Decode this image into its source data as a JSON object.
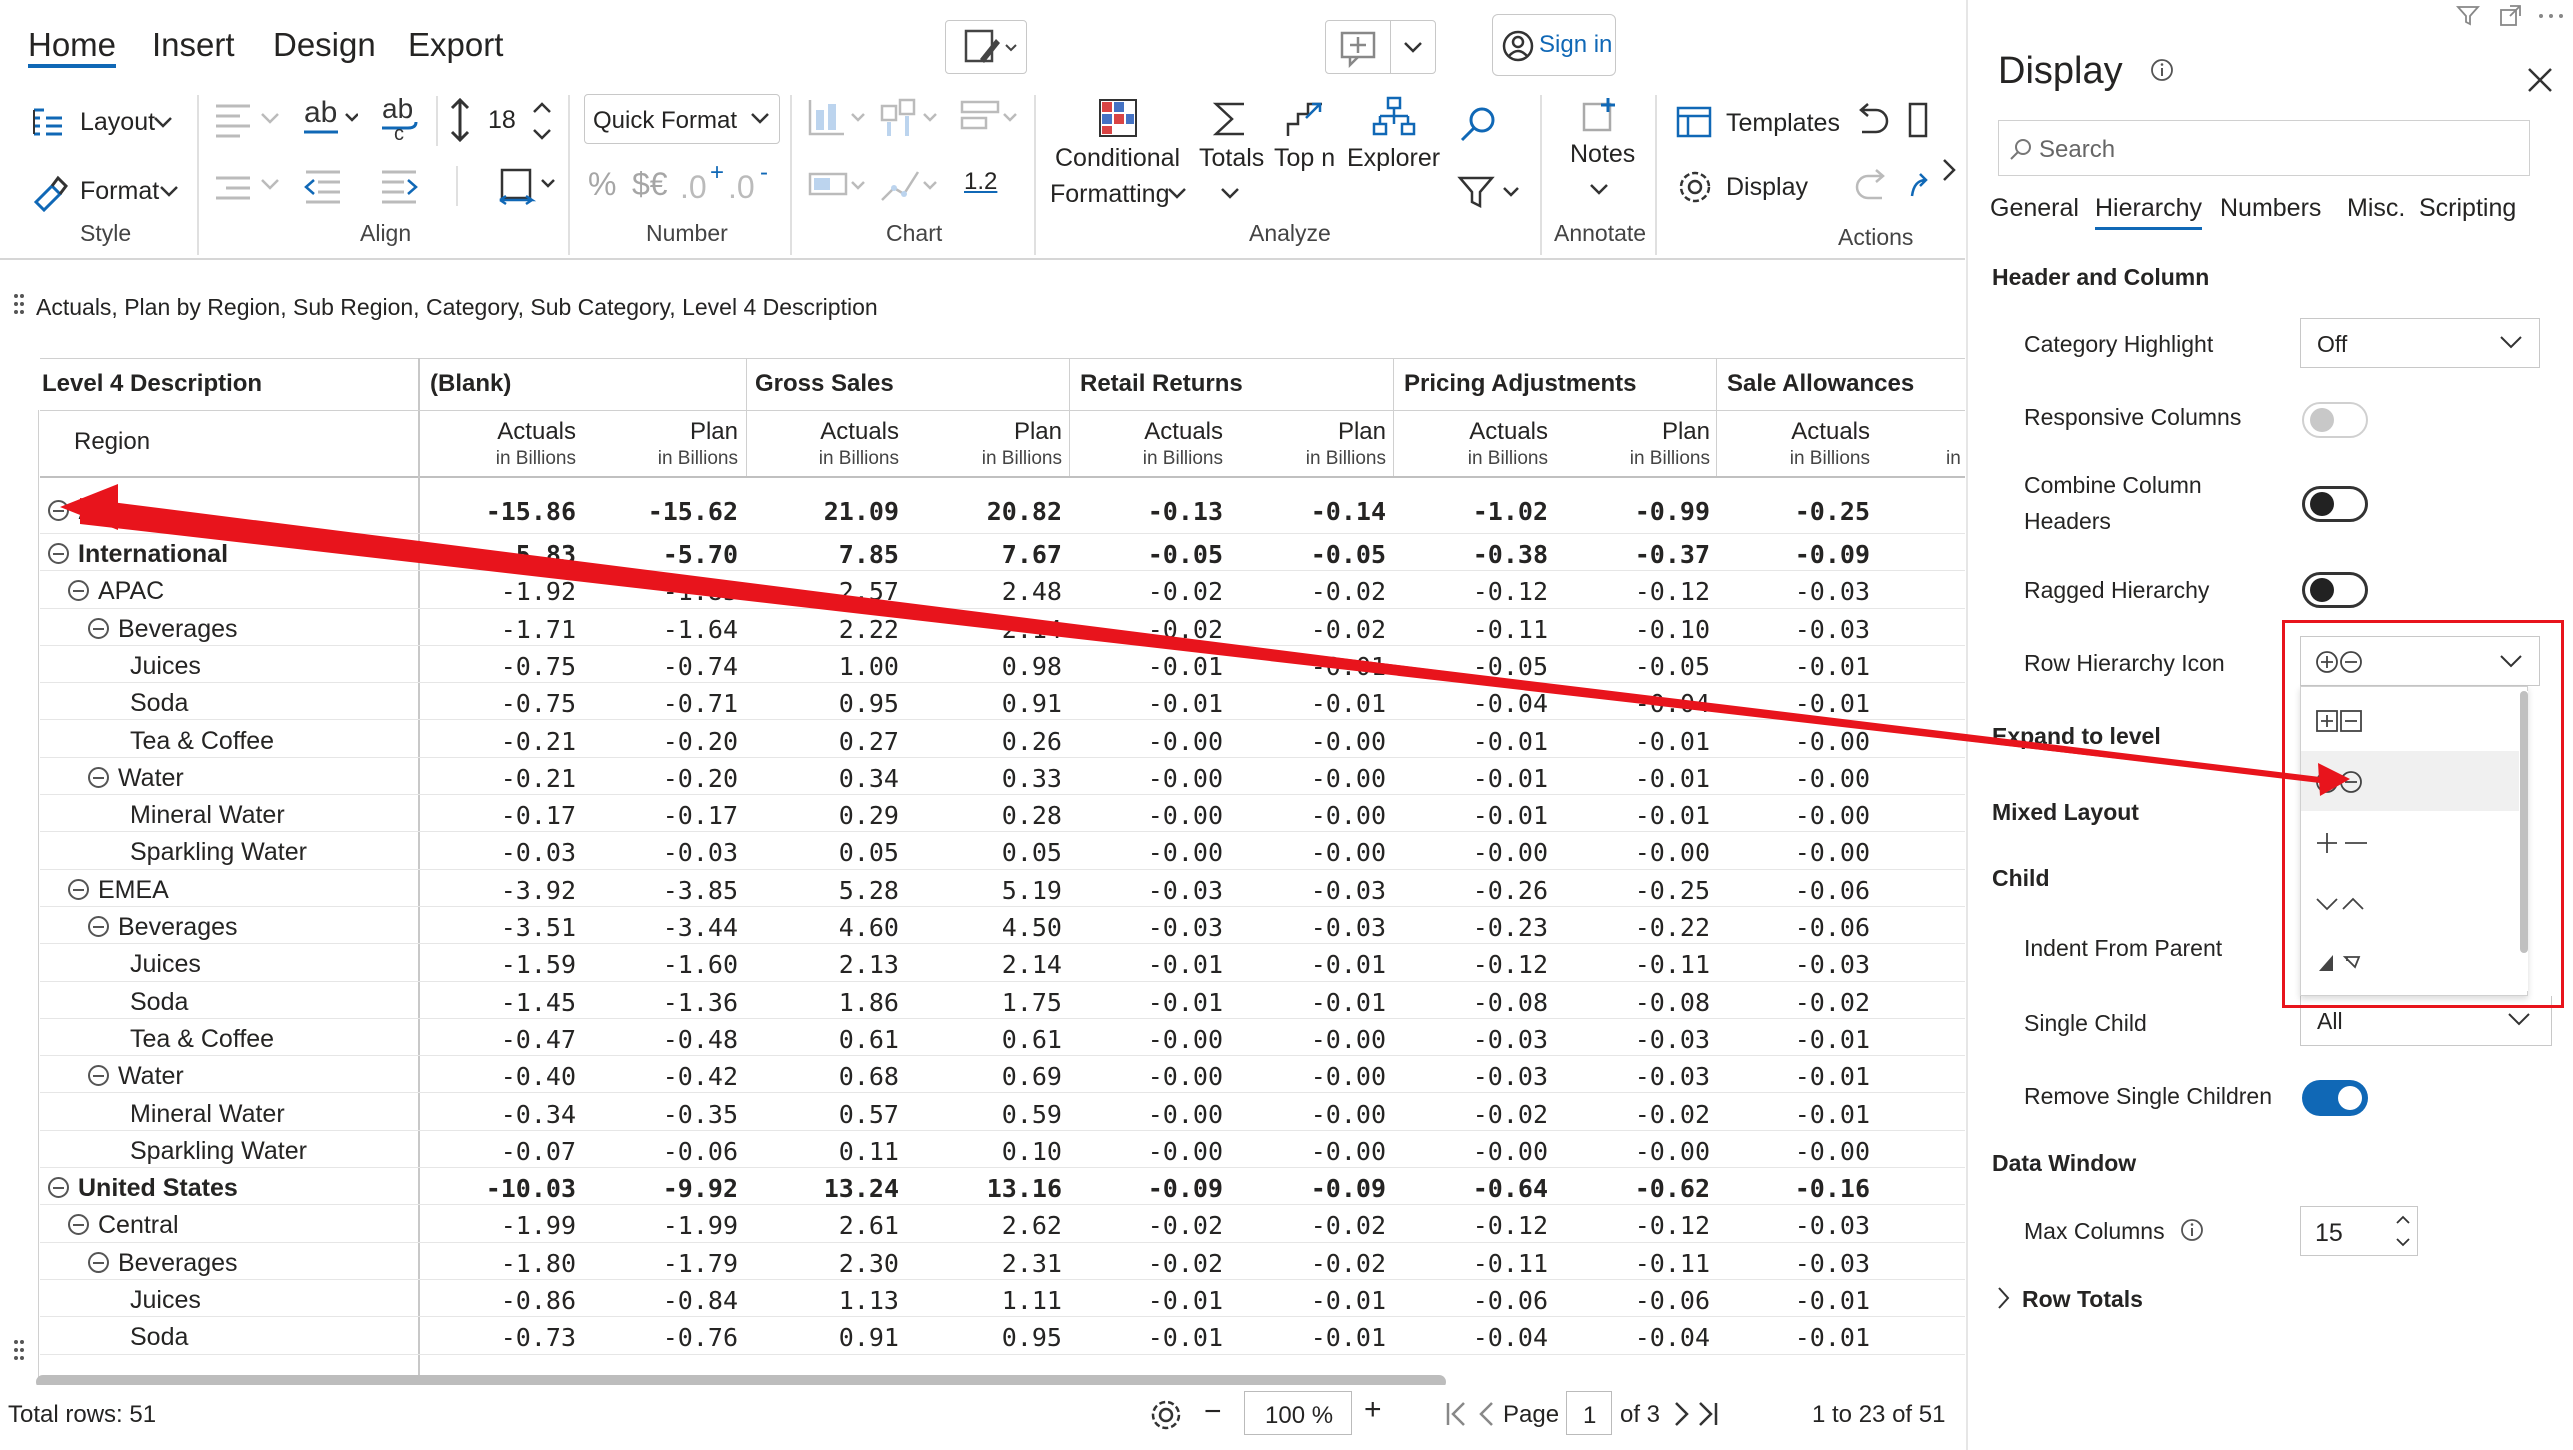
{
  "ribbon": {
    "tabs": [
      "Home",
      "Insert",
      "Design",
      "Export"
    ],
    "sign_in": "Sign in",
    "layout": "Layout",
    "format": "Format",
    "style_group": "Style",
    "font_size": "18",
    "align_group": "Align",
    "quick_format": "Quick Format",
    "number_group": "Number",
    "decimal": "1.2",
    "chart_group": "Chart",
    "conditional": "Conditional",
    "formatting": "Formatting",
    "totals": "Totals",
    "top_n": "Top n",
    "explorer": "Explorer",
    "analyze_group": "Analyze",
    "notes": "Notes",
    "annotate_group": "Annotate",
    "templates": "Templates",
    "display": "Display",
    "actions_group": "Actions"
  },
  "breadcrumb": "Actuals, Plan by Region, Sub Region, Category, Sub Category, Level 4 Description",
  "table": {
    "corner_header": "Level 4 Description",
    "row_header": "Region",
    "column_groups": [
      "(Blank)",
      "Gross Sales",
      "Retail Returns",
      "Pricing Adjustments",
      "Sale Allowances"
    ],
    "measures": [
      "Actuals",
      "Plan",
      "Actuals",
      "Plan",
      "Actuals",
      "Plan",
      "Actuals",
      "Plan",
      "Actuals"
    ],
    "unit": "in Billions",
    "partial_unit": "in",
    "rows": [
      {
        "label": "All",
        "level": 0,
        "bold": true,
        "collapse": true,
        "values": [
          "-15.86",
          "-15.62",
          "21.09",
          "20.82",
          "-0.13",
          "-0.14",
          "-1.02",
          "-0.99",
          "-0.25"
        ]
      },
      {
        "label": "International",
        "level": 0,
        "bold": true,
        "collapse": true,
        "values": [
          "-5.83",
          "-5.70",
          "7.85",
          "7.67",
          "-0.05",
          "-0.05",
          "-0.38",
          "-0.37",
          "-0.09"
        ]
      },
      {
        "label": "APAC",
        "level": 1,
        "bold": false,
        "collapse": true,
        "values": [
          "-1.92",
          "-1.85",
          "2.57",
          "2.48",
          "-0.02",
          "-0.02",
          "-0.12",
          "-0.12",
          "-0.03"
        ]
      },
      {
        "label": "Beverages",
        "level": 2,
        "bold": false,
        "collapse": true,
        "values": [
          "-1.71",
          "-1.64",
          "2.22",
          "2.14",
          "-0.02",
          "-0.02",
          "-0.11",
          "-0.10",
          "-0.03"
        ]
      },
      {
        "label": "Juices",
        "level": 3,
        "bold": false,
        "collapse": false,
        "values": [
          "-0.75",
          "-0.74",
          "1.00",
          "0.98",
          "-0.01",
          "-0.01",
          "-0.05",
          "-0.05",
          "-0.01"
        ]
      },
      {
        "label": "Soda",
        "level": 3,
        "bold": false,
        "collapse": false,
        "values": [
          "-0.75",
          "-0.71",
          "0.95",
          "0.91",
          "-0.01",
          "-0.01",
          "-0.04",
          "-0.04",
          "-0.01"
        ]
      },
      {
        "label": "Tea & Coffee",
        "level": 3,
        "bold": false,
        "collapse": false,
        "values": [
          "-0.21",
          "-0.20",
          "0.27",
          "0.26",
          "-0.00",
          "-0.00",
          "-0.01",
          "-0.01",
          "-0.00"
        ]
      },
      {
        "label": "Water",
        "level": 2,
        "bold": false,
        "collapse": true,
        "values": [
          "-0.21",
          "-0.20",
          "0.34",
          "0.33",
          "-0.00",
          "-0.00",
          "-0.01",
          "-0.01",
          "-0.00"
        ]
      },
      {
        "label": "Mineral Water",
        "level": 3,
        "bold": false,
        "collapse": false,
        "values": [
          "-0.17",
          "-0.17",
          "0.29",
          "0.28",
          "-0.00",
          "-0.00",
          "-0.01",
          "-0.01",
          "-0.00"
        ]
      },
      {
        "label": "Sparkling Water",
        "level": 3,
        "bold": false,
        "collapse": false,
        "values": [
          "-0.03",
          "-0.03",
          "0.05",
          "0.05",
          "-0.00",
          "-0.00",
          "-0.00",
          "-0.00",
          "-0.00"
        ]
      },
      {
        "label": "EMEA",
        "level": 1,
        "bold": false,
        "collapse": true,
        "values": [
          "-3.92",
          "-3.85",
          "5.28",
          "5.19",
          "-0.03",
          "-0.03",
          "-0.26",
          "-0.25",
          "-0.06"
        ]
      },
      {
        "label": "Beverages",
        "level": 2,
        "bold": false,
        "collapse": true,
        "values": [
          "-3.51",
          "-3.44",
          "4.60",
          "4.50",
          "-0.03",
          "-0.03",
          "-0.23",
          "-0.22",
          "-0.06"
        ]
      },
      {
        "label": "Juices",
        "level": 3,
        "bold": false,
        "collapse": false,
        "values": [
          "-1.59",
          "-1.60",
          "2.13",
          "2.14",
          "-0.01",
          "-0.01",
          "-0.12",
          "-0.11",
          "-0.03"
        ]
      },
      {
        "label": "Soda",
        "level": 3,
        "bold": false,
        "collapse": false,
        "values": [
          "-1.45",
          "-1.36",
          "1.86",
          "1.75",
          "-0.01",
          "-0.01",
          "-0.08",
          "-0.08",
          "-0.02"
        ]
      },
      {
        "label": "Tea & Coffee",
        "level": 3,
        "bold": false,
        "collapse": false,
        "values": [
          "-0.47",
          "-0.48",
          "0.61",
          "0.61",
          "-0.00",
          "-0.00",
          "-0.03",
          "-0.03",
          "-0.01"
        ]
      },
      {
        "label": "Water",
        "level": 2,
        "bold": false,
        "collapse": true,
        "values": [
          "-0.40",
          "-0.42",
          "0.68",
          "0.69",
          "-0.00",
          "-0.00",
          "-0.03",
          "-0.03",
          "-0.01"
        ]
      },
      {
        "label": "Mineral Water",
        "level": 3,
        "bold": false,
        "collapse": false,
        "values": [
          "-0.34",
          "-0.35",
          "0.57",
          "0.59",
          "-0.00",
          "-0.00",
          "-0.02",
          "-0.02",
          "-0.01"
        ]
      },
      {
        "label": "Sparkling Water",
        "level": 3,
        "bold": false,
        "collapse": false,
        "values": [
          "-0.07",
          "-0.06",
          "0.11",
          "0.10",
          "-0.00",
          "-0.00",
          "-0.00",
          "-0.00",
          "-0.00"
        ]
      },
      {
        "label": "United States",
        "level": 0,
        "bold": true,
        "collapse": true,
        "values": [
          "-10.03",
          "-9.92",
          "13.24",
          "13.16",
          "-0.09",
          "-0.09",
          "-0.64",
          "-0.62",
          "-0.16"
        ]
      },
      {
        "label": "Central",
        "level": 1,
        "bold": false,
        "collapse": true,
        "values": [
          "-1.99",
          "-1.99",
          "2.61",
          "2.62",
          "-0.02",
          "-0.02",
          "-0.12",
          "-0.12",
          "-0.03"
        ]
      },
      {
        "label": "Beverages",
        "level": 2,
        "bold": false,
        "collapse": true,
        "values": [
          "-1.80",
          "-1.79",
          "2.30",
          "2.31",
          "-0.02",
          "-0.02",
          "-0.11",
          "-0.11",
          "-0.03"
        ]
      },
      {
        "label": "Juices",
        "level": 3,
        "bold": false,
        "collapse": false,
        "values": [
          "-0.86",
          "-0.84",
          "1.13",
          "1.11",
          "-0.01",
          "-0.01",
          "-0.06",
          "-0.06",
          "-0.01"
        ]
      },
      {
        "label": "Soda",
        "level": 3,
        "bold": false,
        "collapse": false,
        "values": [
          "-0.73",
          "-0.76",
          "0.91",
          "0.95",
          "-0.01",
          "-0.01",
          "-0.04",
          "-0.04",
          "-0.01"
        ]
      }
    ]
  },
  "footer": {
    "total_rows": "Total rows: 51",
    "zoom": "100 %",
    "page_label": "Page",
    "page_value": "1",
    "page_of": "of 3",
    "range": "1  to  23  of  51"
  },
  "panel": {
    "title": "Display",
    "search_placeholder": "Search",
    "tabs": [
      "General",
      "Hierarchy",
      "Numbers",
      "Misc.",
      "Scripting"
    ],
    "active_tab": "Hierarchy",
    "section_header_column": "Header and Column",
    "category_highlight_label": "Category Highlight",
    "category_highlight_value": "Off",
    "responsive_columns_label": "Responsive Columns",
    "combine_label_1": "Combine Column",
    "combine_label_2": "Headers",
    "ragged_label": "Ragged Hierarchy",
    "row_icon_label": "Row Hierarchy Icon",
    "expand_label": "Expand to level",
    "mixed_label": "Mixed Layout",
    "child_label": "Child",
    "indent_label": "Indent From Parent",
    "single_child_label": "Single Child",
    "single_child_value": "All",
    "remove_single_label": "Remove Single Children",
    "data_window_label": "Data Window",
    "max_columns_label": "Max Columns",
    "max_columns_value": "15",
    "row_totals_label": "Row Totals",
    "icon_options": [
      "boxed-plus-minus",
      "circled-plus-minus",
      "plus-minus",
      "chevrons",
      "triangles"
    ],
    "selected_icon_option": "circled-plus-minus"
  },
  "colors": {
    "accent": "#1068b6",
    "annotation": "#e8141c",
    "toggle_on": "#1068b6"
  }
}
